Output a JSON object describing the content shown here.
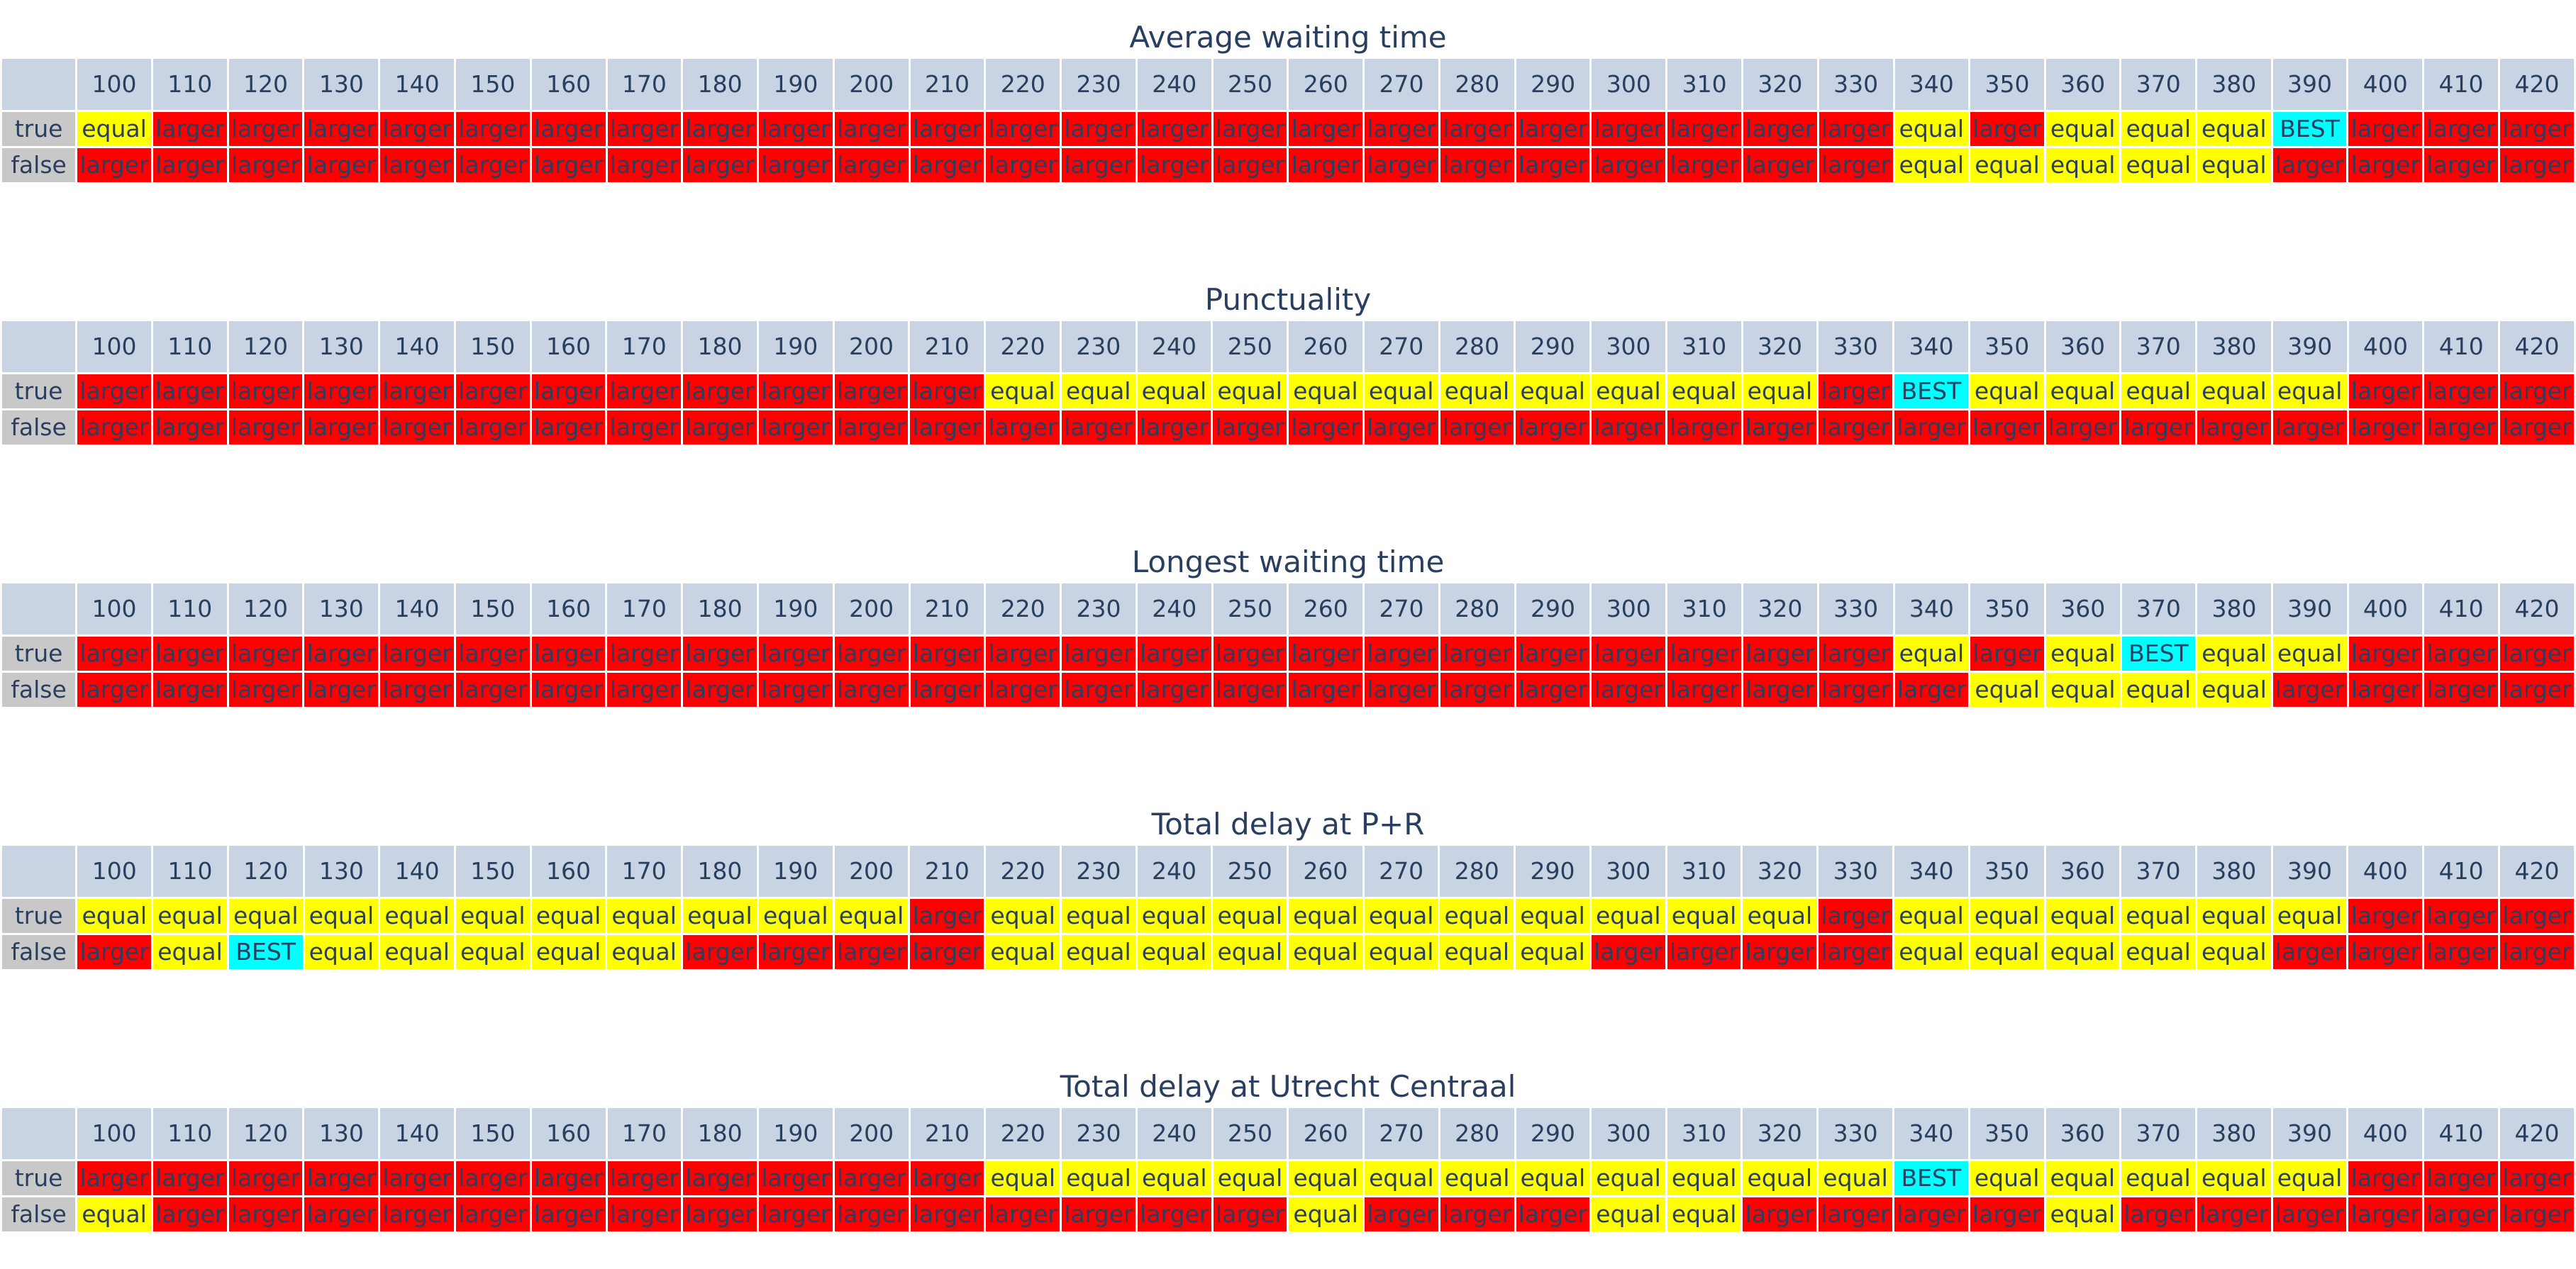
{
  "chart_data": [
    {
      "type": "table",
      "title": "Average waiting time",
      "columns": [
        "100",
        "110",
        "120",
        "130",
        "140",
        "150",
        "160",
        "170",
        "180",
        "190",
        "200",
        "210",
        "220",
        "230",
        "240",
        "250",
        "260",
        "270",
        "280",
        "290",
        "300",
        "310",
        "320",
        "330",
        "340",
        "350",
        "360",
        "370",
        "380",
        "390",
        "400",
        "410",
        "420"
      ],
      "rows": [
        {
          "label": "true",
          "cells": [
            "equal",
            "larger",
            "larger",
            "larger",
            "larger",
            "larger",
            "larger",
            "larger",
            "larger",
            "larger",
            "larger",
            "larger",
            "larger",
            "larger",
            "larger",
            "larger",
            "larger",
            "larger",
            "larger",
            "larger",
            "larger",
            "larger",
            "larger",
            "larger",
            "equal",
            "larger",
            "equal",
            "equal",
            "equal",
            "BEST",
            "larger",
            "larger",
            "larger"
          ]
        },
        {
          "label": "false",
          "cells": [
            "larger",
            "larger",
            "larger",
            "larger",
            "larger",
            "larger",
            "larger",
            "larger",
            "larger",
            "larger",
            "larger",
            "larger",
            "larger",
            "larger",
            "larger",
            "larger",
            "larger",
            "larger",
            "larger",
            "larger",
            "larger",
            "larger",
            "larger",
            "larger",
            "equal",
            "equal",
            "equal",
            "equal",
            "equal",
            "larger",
            "larger",
            "larger",
            "larger"
          ]
        }
      ]
    },
    {
      "type": "table",
      "title": "Punctuality",
      "columns": [
        "100",
        "110",
        "120",
        "130",
        "140",
        "150",
        "160",
        "170",
        "180",
        "190",
        "200",
        "210",
        "220",
        "230",
        "240",
        "250",
        "260",
        "270",
        "280",
        "290",
        "300",
        "310",
        "320",
        "330",
        "340",
        "350",
        "360",
        "370",
        "380",
        "390",
        "400",
        "410",
        "420"
      ],
      "rows": [
        {
          "label": "true",
          "cells": [
            "larger",
            "larger",
            "larger",
            "larger",
            "larger",
            "larger",
            "larger",
            "larger",
            "larger",
            "larger",
            "larger",
            "larger",
            "equal",
            "equal",
            "equal",
            "equal",
            "equal",
            "equal",
            "equal",
            "equal",
            "equal",
            "equal",
            "equal",
            "larger",
            "BEST",
            "equal",
            "equal",
            "equal",
            "equal",
            "equal",
            "larger",
            "larger",
            "larger"
          ]
        },
        {
          "label": "false",
          "cells": [
            "larger",
            "larger",
            "larger",
            "larger",
            "larger",
            "larger",
            "larger",
            "larger",
            "larger",
            "larger",
            "larger",
            "larger",
            "larger",
            "larger",
            "larger",
            "larger",
            "larger",
            "larger",
            "larger",
            "larger",
            "larger",
            "larger",
            "larger",
            "larger",
            "larger",
            "larger",
            "larger",
            "larger",
            "larger",
            "larger",
            "larger",
            "larger",
            "larger"
          ]
        }
      ]
    },
    {
      "type": "table",
      "title": "Longest waiting time",
      "columns": [
        "100",
        "110",
        "120",
        "130",
        "140",
        "150",
        "160",
        "170",
        "180",
        "190",
        "200",
        "210",
        "220",
        "230",
        "240",
        "250",
        "260",
        "270",
        "280",
        "290",
        "300",
        "310",
        "320",
        "330",
        "340",
        "350",
        "360",
        "370",
        "380",
        "390",
        "400",
        "410",
        "420"
      ],
      "rows": [
        {
          "label": "true",
          "cells": [
            "larger",
            "larger",
            "larger",
            "larger",
            "larger",
            "larger",
            "larger",
            "larger",
            "larger",
            "larger",
            "larger",
            "larger",
            "larger",
            "larger",
            "larger",
            "larger",
            "larger",
            "larger",
            "larger",
            "larger",
            "larger",
            "larger",
            "larger",
            "larger",
            "equal",
            "larger",
            "equal",
            "BEST",
            "equal",
            "equal",
            "larger",
            "larger",
            "larger"
          ]
        },
        {
          "label": "false",
          "cells": [
            "larger",
            "larger",
            "larger",
            "larger",
            "larger",
            "larger",
            "larger",
            "larger",
            "larger",
            "larger",
            "larger",
            "larger",
            "larger",
            "larger",
            "larger",
            "larger",
            "larger",
            "larger",
            "larger",
            "larger",
            "larger",
            "larger",
            "larger",
            "larger",
            "larger",
            "equal",
            "equal",
            "equal",
            "equal",
            "larger",
            "larger",
            "larger",
            "larger"
          ]
        }
      ]
    },
    {
      "type": "table",
      "title": "Total delay at P+R",
      "columns": [
        "100",
        "110",
        "120",
        "130",
        "140",
        "150",
        "160",
        "170",
        "180",
        "190",
        "200",
        "210",
        "220",
        "230",
        "240",
        "250",
        "260",
        "270",
        "280",
        "290",
        "300",
        "310",
        "320",
        "330",
        "340",
        "350",
        "360",
        "370",
        "380",
        "390",
        "400",
        "410",
        "420"
      ],
      "rows": [
        {
          "label": "true",
          "cells": [
            "equal",
            "equal",
            "equal",
            "equal",
            "equal",
            "equal",
            "equal",
            "equal",
            "equal",
            "equal",
            "equal",
            "larger",
            "equal",
            "equal",
            "equal",
            "equal",
            "equal",
            "equal",
            "equal",
            "equal",
            "equal",
            "equal",
            "equal",
            "larger",
            "equal",
            "equal",
            "equal",
            "equal",
            "equal",
            "equal",
            "larger",
            "larger",
            "larger"
          ]
        },
        {
          "label": "false",
          "cells": [
            "larger",
            "equal",
            "BEST",
            "equal",
            "equal",
            "equal",
            "equal",
            "equal",
            "larger",
            "larger",
            "larger",
            "larger",
            "equal",
            "equal",
            "equal",
            "equal",
            "equal",
            "equal",
            "equal",
            "equal",
            "larger",
            "larger",
            "larger",
            "larger",
            "equal",
            "equal",
            "equal",
            "equal",
            "equal",
            "larger",
            "larger",
            "larger",
            "larger"
          ]
        }
      ]
    },
    {
      "type": "table",
      "title": "Total delay at Utrecht Centraal",
      "columns": [
        "100",
        "110",
        "120",
        "130",
        "140",
        "150",
        "160",
        "170",
        "180",
        "190",
        "200",
        "210",
        "220",
        "230",
        "240",
        "250",
        "260",
        "270",
        "280",
        "290",
        "300",
        "310",
        "320",
        "330",
        "340",
        "350",
        "360",
        "370",
        "380",
        "390",
        "400",
        "410",
        "420"
      ],
      "rows": [
        {
          "label": "true",
          "cells": [
            "larger",
            "larger",
            "larger",
            "larger",
            "larger",
            "larger",
            "larger",
            "larger",
            "larger",
            "larger",
            "larger",
            "larger",
            "equal",
            "equal",
            "equal",
            "equal",
            "equal",
            "equal",
            "equal",
            "equal",
            "equal",
            "equal",
            "equal",
            "equal",
            "BEST",
            "equal",
            "equal",
            "equal",
            "equal",
            "equal",
            "larger",
            "larger",
            "larger"
          ]
        },
        {
          "label": "false",
          "cells": [
            "equal",
            "larger",
            "larger",
            "larger",
            "larger",
            "larger",
            "larger",
            "larger",
            "larger",
            "larger",
            "larger",
            "larger",
            "larger",
            "larger",
            "larger",
            "larger",
            "equal",
            "larger",
            "larger",
            "larger",
            "equal",
            "equal",
            "larger",
            "larger",
            "larger",
            "larger",
            "equal",
            "larger",
            "larger",
            "larger",
            "larger",
            "larger",
            "larger"
          ]
        }
      ]
    }
  ],
  "colors": {
    "header_bg": "#c8d4e3",
    "row_label_bg": "#c8c8c8",
    "larger": "#ff0000",
    "equal": "#ffff00",
    "BEST": "#00ffff",
    "text": "#2a3f5f"
  }
}
